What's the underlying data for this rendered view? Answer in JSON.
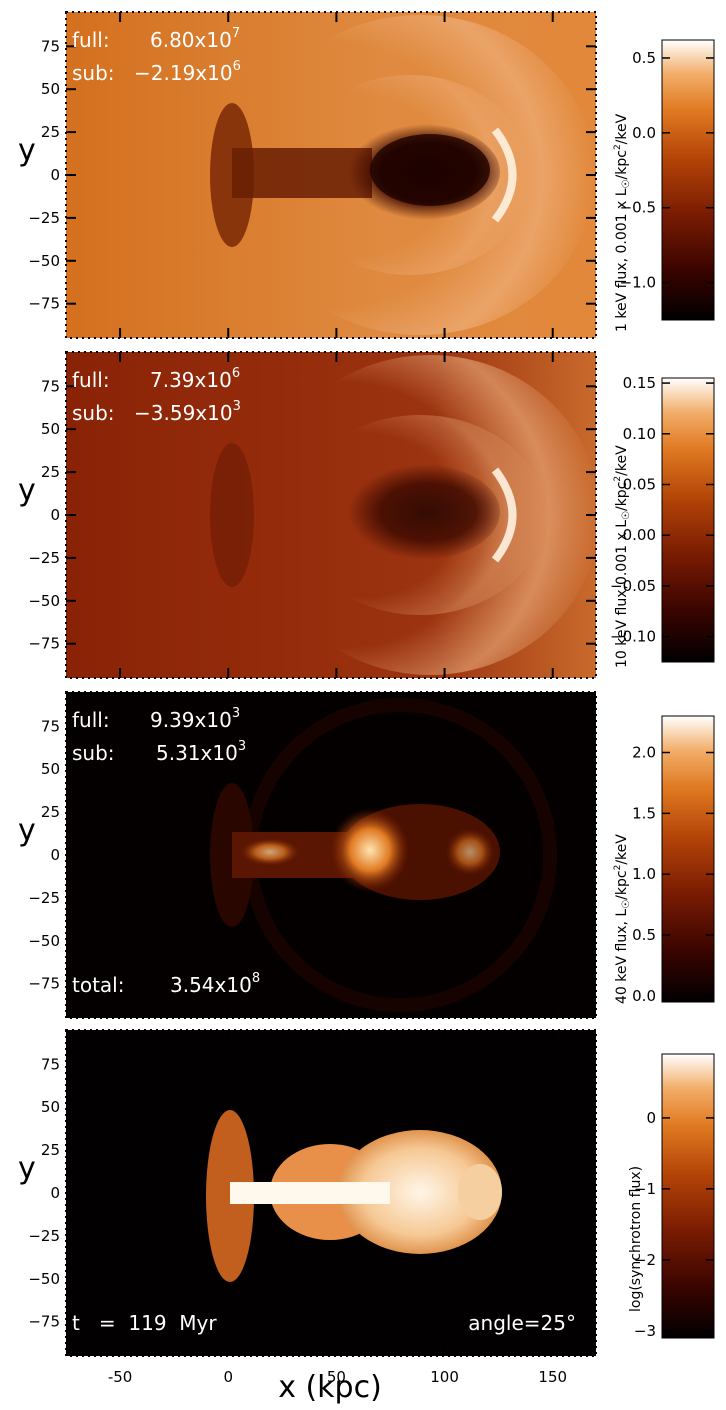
{
  "colors": {
    "cmap": [
      "#000000",
      "#3a0400",
      "#7a1c02",
      "#b54508",
      "#e07a22",
      "#f2ae6a",
      "#ffffff"
    ]
  },
  "chart_data": [
    {
      "type": "heatmap",
      "xlim": [
        -75,
        170
      ],
      "ylim": [
        -95,
        95
      ],
      "x_ticks": [
        "-50",
        "0",
        "50",
        "100",
        "150"
      ],
      "y_ticks": [
        "75",
        "50",
        "25",
        "0",
        "-25",
        "-50",
        "-75"
      ],
      "ylabel": "y",
      "texts": {
        "full_label": "full:",
        "full_mant": "6.80x10",
        "full_exp": "7",
        "sub_label": "sub:",
        "sub_mant": "−2.19x10",
        "sub_exp": "6"
      },
      "colorbar": {
        "label_a": "1 keV flux, 0.001 x L",
        "label_b": "/kpc",
        "label_c": "/keV",
        "ticks": [
          "0.5",
          "0.0",
          "−0.5",
          "−1.0"
        ],
        "tick_values": [
          0.5,
          0.0,
          -0.5,
          -1.0
        ],
        "range": [
          -1.25,
          0.62
        ]
      }
    },
    {
      "type": "heatmap",
      "xlim": [
        -75,
        170
      ],
      "ylim": [
        -95,
        95
      ],
      "x_ticks": [
        "-50",
        "0",
        "50",
        "100",
        "150"
      ],
      "y_ticks": [
        "75",
        "50",
        "25",
        "0",
        "-25",
        "-50",
        "-75"
      ],
      "ylabel": "y",
      "texts": {
        "full_label": "full:",
        "full_mant": "7.39x10",
        "full_exp": "6",
        "sub_label": "sub:",
        "sub_mant": "−3.59x10",
        "sub_exp": "3"
      },
      "colorbar": {
        "label_a": "10 keV flux,0.001 x L",
        "label_b": "/kpc",
        "label_c": "/keV",
        "ticks": [
          "0.15",
          "0.10",
          "0.05",
          "0.00",
          "−0.05",
          "−0.10"
        ],
        "tick_values": [
          0.15,
          0.1,
          0.05,
          0.0,
          -0.05,
          -0.1
        ],
        "range": [
          -0.125,
          0.155
        ]
      }
    },
    {
      "type": "heatmap",
      "xlim": [
        -75,
        170
      ],
      "ylim": [
        -95,
        95
      ],
      "x_ticks": [
        "-50",
        "0",
        "50",
        "100",
        "150"
      ],
      "y_ticks": [
        "75",
        "50",
        "25",
        "0",
        "-25",
        "-50",
        "-75"
      ],
      "ylabel": "y",
      "texts": {
        "full_label": "full:",
        "full_mant": "9.39x10",
        "full_exp": "3",
        "sub_label": "sub:",
        "sub_mant": "5.31x10",
        "sub_exp": "3",
        "total_label": "total:",
        "total_mant": "3.54x10",
        "total_exp": "8"
      },
      "colorbar": {
        "label_a": "40 keV flux, L",
        "label_b": "/kpc",
        "label_c": "/keV",
        "ticks": [
          "2.0",
          "1.5",
          "1.0",
          "0.5",
          "0.0"
        ],
        "tick_values": [
          2.0,
          1.5,
          1.0,
          0.5,
          0.0
        ],
        "range": [
          -0.05,
          2.3
        ]
      }
    },
    {
      "type": "heatmap",
      "xlim": [
        -75,
        170
      ],
      "ylim": [
        -95,
        95
      ],
      "x_ticks": [
        "-50",
        "0",
        "50",
        "100",
        "150"
      ],
      "y_ticks": [
        "75",
        "50",
        "25",
        "0",
        "-25",
        "-50",
        "-75"
      ],
      "xlabel": "x (kpc)",
      "ylabel": "y",
      "texts": {
        "time": "t   =  119  Myr",
        "angle": "angle=25°"
      },
      "colorbar": {
        "label_a": "log(synchrotron flux)",
        "ticks": [
          "0",
          "−1",
          "−2",
          "−3"
        ],
        "tick_values": [
          0,
          -1,
          -2,
          -3
        ],
        "range": [
          -3.1,
          0.9
        ]
      }
    }
  ]
}
